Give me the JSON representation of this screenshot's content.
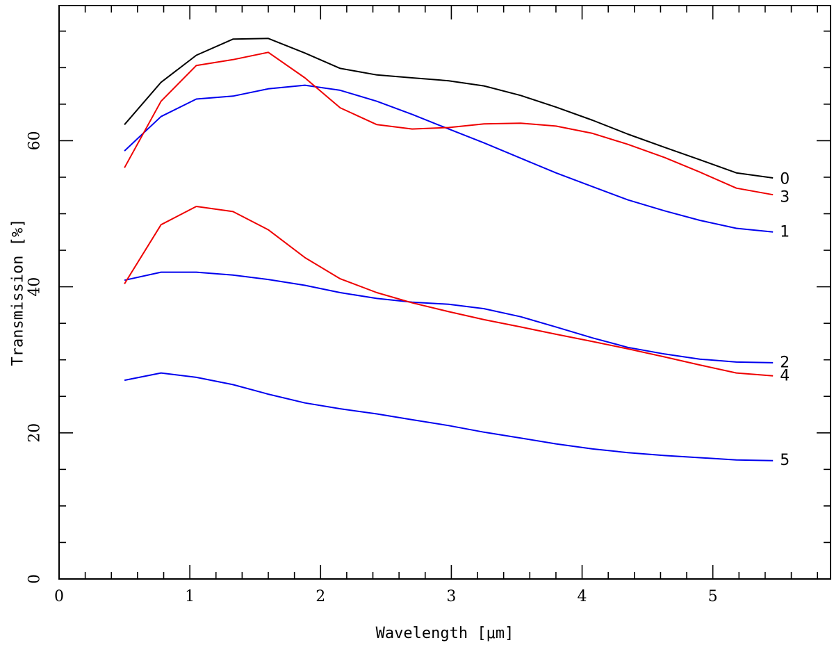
{
  "chart_data": {
    "type": "line",
    "title": "",
    "xlabel": "Wavelength [μm]",
    "ylabel": "Transmission [%]",
    "xlim": [
      0,
      5.9
    ],
    "ylim": [
      0,
      78.5
    ],
    "x_ticks": [
      0,
      1,
      2,
      3,
      4,
      5
    ],
    "x_tick_labels": [
      "0",
      "1",
      "2",
      "3",
      "4",
      "5"
    ],
    "y_ticks": [
      0,
      20,
      40,
      60
    ],
    "y_tick_labels": [
      "0",
      "20",
      "40",
      "60"
    ],
    "grid": false,
    "x": [
      0.5,
      0.78,
      1.05,
      1.33,
      1.6,
      1.88,
      2.15,
      2.43,
      2.7,
      2.98,
      3.25,
      3.53,
      3.8,
      4.08,
      4.35,
      4.63,
      4.9,
      5.18,
      5.46
    ],
    "series": [
      {
        "name": "0",
        "color": "#000000",
        "values": [
          62.2,
          68.0,
          71.7,
          73.9,
          74.0,
          72.0,
          69.9,
          69.0,
          68.6,
          68.2,
          67.5,
          66.2,
          64.6,
          62.8,
          60.9,
          59.1,
          57.4,
          55.6,
          54.9
        ]
      },
      {
        "name": "1",
        "color": "#0000ee",
        "values": [
          58.6,
          63.3,
          65.7,
          66.1,
          67.1,
          67.6,
          66.9,
          65.4,
          63.6,
          61.6,
          59.7,
          57.6,
          55.6,
          53.7,
          51.9,
          50.4,
          49.1,
          48.0,
          47.5
        ]
      },
      {
        "name": "2",
        "color": "#0000ee",
        "values": [
          40.9,
          42.0,
          42.0,
          41.6,
          41.0,
          40.2,
          39.2,
          38.4,
          37.9,
          37.6,
          37.0,
          35.9,
          34.5,
          33.0,
          31.7,
          30.8,
          30.1,
          29.7,
          29.6
        ]
      },
      {
        "name": "3",
        "color": "#ee0000",
        "values": [
          56.3,
          65.4,
          70.3,
          71.1,
          72.1,
          68.6,
          64.5,
          62.2,
          61.6,
          61.8,
          62.3,
          62.4,
          62.0,
          61.0,
          59.5,
          57.7,
          55.7,
          53.5,
          52.6
        ]
      },
      {
        "name": "4",
        "color": "#ee0000",
        "values": [
          40.4,
          48.5,
          51.0,
          50.3,
          47.8,
          44.0,
          41.1,
          39.2,
          37.8,
          36.6,
          35.5,
          34.5,
          33.5,
          32.5,
          31.5,
          30.4,
          29.3,
          28.2,
          27.8
        ]
      },
      {
        "name": "5",
        "color": "#0000ee",
        "values": [
          27.2,
          28.2,
          27.6,
          26.6,
          25.3,
          24.1,
          23.3,
          22.6,
          21.8,
          21.0,
          20.1,
          19.3,
          18.5,
          17.8,
          17.3,
          16.9,
          16.6,
          16.3,
          16.2
        ]
      }
    ]
  }
}
